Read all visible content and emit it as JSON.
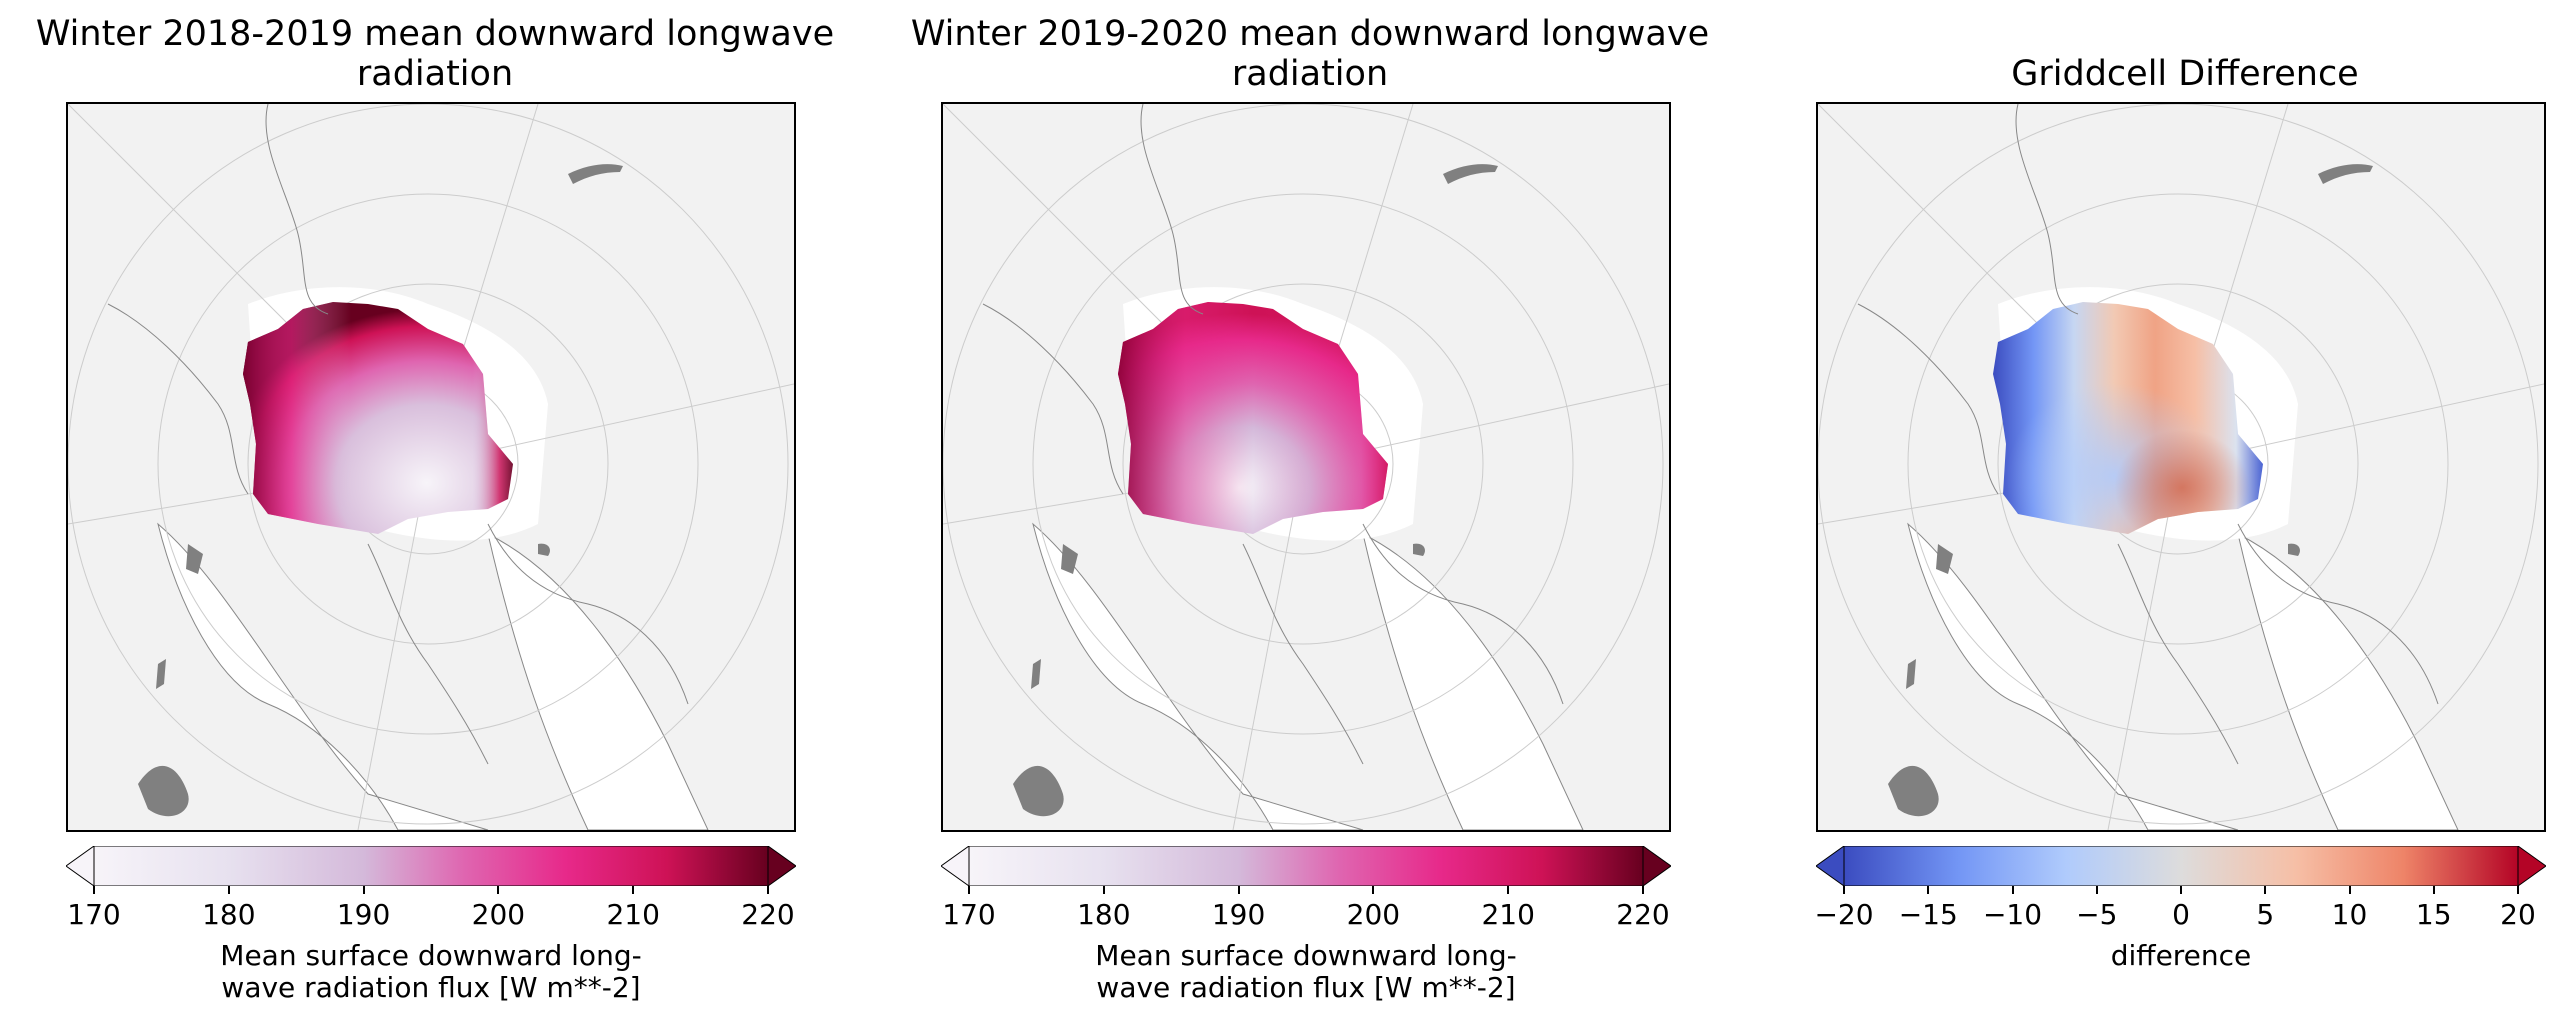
{
  "panels": [
    {
      "title": "Winter 2018-2019 mean downward longwave\nradiation",
      "colorbar": {
        "label": "Mean surface downward long-\nwave radiation flux [W m**-2]",
        "ticks": [
          "170",
          "180",
          "190",
          "200",
          "210",
          "220"
        ],
        "range": [
          170,
          220
        ],
        "colormap": [
          "#f7f4f9",
          "#d4b9da",
          "#df65b0",
          "#e7298a",
          "#ce1256",
          "#67001f"
        ],
        "extend": "both"
      }
    },
    {
      "title": "Winter 2019-2020 mean downward longwave\nradiation",
      "colorbar": {
        "label": "Mean surface downward long-\nwave radiation flux [W m**-2]",
        "ticks": [
          "170",
          "180",
          "190",
          "200",
          "210",
          "220"
        ],
        "range": [
          170,
          220
        ],
        "colormap": [
          "#f7f4f9",
          "#d4b9da",
          "#df65b0",
          "#e7298a",
          "#ce1256",
          "#67001f"
        ],
        "extend": "both"
      }
    },
    {
      "title": "Griddcell Difference",
      "colorbar": {
        "label": "difference",
        "ticks": [
          "−20",
          "−15",
          "−10",
          "−5",
          "0",
          "5",
          "10",
          "15",
          "20"
        ],
        "range": [
          -20,
          20
        ],
        "colormap": [
          "#3b4cc0",
          "#7396f5",
          "#b0cbfc",
          "#dddcdc",
          "#f6bfa6",
          "#ee8468",
          "#b40426"
        ],
        "extend": "both"
      }
    }
  ],
  "map": {
    "projection": "North Polar Stereographic",
    "land_color": "#f2f2f2",
    "ocean_color": "#ffffff",
    "lake_color": "#808080",
    "gridlines": "on"
  }
}
